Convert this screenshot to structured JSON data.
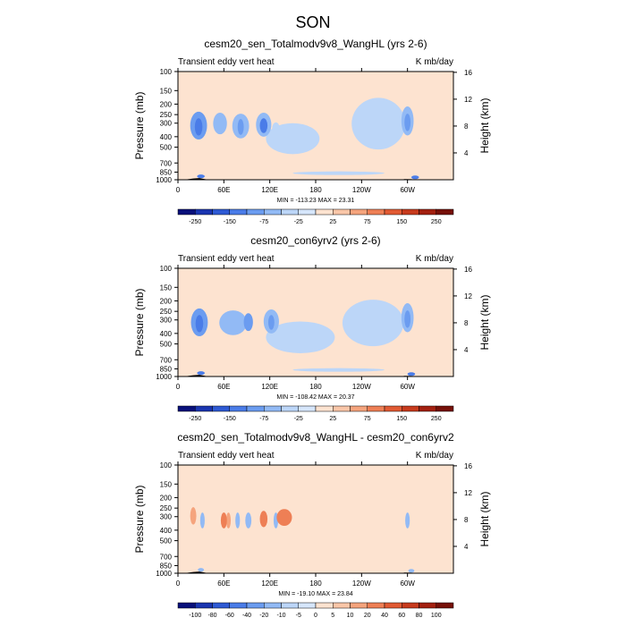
{
  "figure": {
    "main_title": "SON"
  },
  "colors": {
    "background_panel": "#fde3d0",
    "negative_scale": [
      "#08107a",
      "#1a35b0",
      "#2e5ad4",
      "#4a7ce8",
      "#6b9cf0",
      "#92baf5",
      "#bcd6f8",
      "#d6e6fb"
    ],
    "positive_scale": [
      "#fde3d0",
      "#f9c6a8",
      "#f5a47d",
      "#ee7f55",
      "#e15a33",
      "#c73b1d",
      "#a32010",
      "#761008"
    ],
    "topography": "#000000"
  },
  "chart_data": [
    {
      "type": "heatmap",
      "title": "cesm20_sen_Totalmodv9v8_WangHL (yrs 2-6)",
      "left_string": "Transient eddy vert heat",
      "right_string": "K mb/day",
      "ylabel": "Pressure (mb)",
      "y2label": "Height (km)",
      "y_ticks": [
        "100",
        "150",
        "200",
        "250",
        "300",
        "400",
        "500",
        "700",
        "850",
        "1000"
      ],
      "y_tick_values": [
        100,
        150,
        200,
        250,
        300,
        400,
        500,
        700,
        850,
        1000
      ],
      "y2_ticks": [
        "4",
        "8",
        "12",
        "16"
      ],
      "y2_tick_values": [
        4,
        8,
        12,
        16
      ],
      "x_ticks": [
        "0",
        "60E",
        "120E",
        "180",
        "120W",
        "60W"
      ],
      "x_tick_values": [
        0,
        60,
        120,
        180,
        240,
        300
      ],
      "xlim": [
        0,
        360
      ],
      "ylim": [
        1000,
        100
      ],
      "stats": "MIN = -113.23  MAX =  23.31",
      "colorbar_labels": [
        "-250",
        "-150",
        "-75",
        "-25",
        "25",
        "75",
        "150",
        "250"
      ],
      "features": [
        {
          "lon": 27,
          "plev": 330,
          "dlon": 11,
          "dp": 190,
          "value": -60
        },
        {
          "lon": 27,
          "plev": 330,
          "dlon": 5,
          "dp": 120,
          "value": -90
        },
        {
          "lon": 55,
          "plev": 310,
          "dlon": 9,
          "dp": 140,
          "value": -40
        },
        {
          "lon": 82,
          "plev": 330,
          "dlon": 11,
          "dp": 170,
          "value": -40
        },
        {
          "lon": 82,
          "plev": 330,
          "dlon": 4,
          "dp": 110,
          "value": -60
        },
        {
          "lon": 112,
          "plev": 320,
          "dlon": 10,
          "dp": 160,
          "value": -50
        },
        {
          "lon": 112,
          "plev": 320,
          "dlon": 5,
          "dp": 100,
          "value": -80
        },
        {
          "lon": 128,
          "plev": 340,
          "dlon": 5,
          "dp": 90,
          "value": -25
        },
        {
          "lon": 150,
          "plev": 440,
          "dlon": 35,
          "dp": 280,
          "value": -15
        },
        {
          "lon": 262,
          "plev": 350,
          "dlon": 35,
          "dp": 350,
          "value": -15
        },
        {
          "lon": 300,
          "plev": 300,
          "dlon": 8,
          "dp": 180,
          "value": -45
        },
        {
          "lon": 300,
          "plev": 300,
          "dlon": 4,
          "dp": 110,
          "value": -70
        },
        {
          "lon": 30,
          "plev": 930,
          "dlon": 5,
          "dp": 60,
          "value": -100
        },
        {
          "lon": 310,
          "plev": 950,
          "dlon": 5,
          "dp": 40,
          "value": -80
        },
        {
          "lon": 210,
          "plev": 870,
          "dlon": 60,
          "dp": 40,
          "value": -12
        }
      ]
    },
    {
      "type": "heatmap",
      "title": "cesm20_con6yrv2 (yrs 2-6)",
      "left_string": "Transient eddy vert heat",
      "right_string": "K mb/day",
      "ylabel": "Pressure (mb)",
      "y2label": "Height (km)",
      "y_ticks": [
        "100",
        "150",
        "200",
        "250",
        "300",
        "400",
        "500",
        "700",
        "850",
        "1000"
      ],
      "y_tick_values": [
        100,
        150,
        200,
        250,
        300,
        400,
        500,
        700,
        850,
        1000
      ],
      "y2_ticks": [
        "4",
        "8",
        "12",
        "16"
      ],
      "y2_tick_values": [
        4,
        8,
        12,
        16
      ],
      "x_ticks": [
        "0",
        "60E",
        "120E",
        "180",
        "120W",
        "60W"
      ],
      "x_tick_values": [
        0,
        60,
        120,
        180,
        240,
        300
      ],
      "xlim": [
        0,
        360
      ],
      "ylim": [
        1000,
        100
      ],
      "stats": "MIN = -108.42  MAX =  20.37",
      "colorbar_labels": [
        "-250",
        "-150",
        "-75",
        "-25",
        "25",
        "75",
        "150",
        "250"
      ],
      "features": [
        {
          "lon": 28,
          "plev": 330,
          "dlon": 11,
          "dp": 190,
          "value": -60
        },
        {
          "lon": 28,
          "plev": 330,
          "dlon": 5,
          "dp": 120,
          "value": -90
        },
        {
          "lon": 72,
          "plev": 330,
          "dlon": 18,
          "dp": 170,
          "value": -40
        },
        {
          "lon": 92,
          "plev": 320,
          "dlon": 6,
          "dp": 120,
          "value": -60
        },
        {
          "lon": 122,
          "plev": 320,
          "dlon": 10,
          "dp": 160,
          "value": -50
        },
        {
          "lon": 122,
          "plev": 320,
          "dlon": 4,
          "dp": 100,
          "value": -70
        },
        {
          "lon": 160,
          "plev": 460,
          "dlon": 45,
          "dp": 300,
          "value": -15
        },
        {
          "lon": 255,
          "plev": 360,
          "dlon": 40,
          "dp": 330,
          "value": -12
        },
        {
          "lon": 300,
          "plev": 300,
          "dlon": 8,
          "dp": 180,
          "value": -45
        },
        {
          "lon": 300,
          "plev": 300,
          "dlon": 4,
          "dp": 110,
          "value": -70
        },
        {
          "lon": 30,
          "plev": 930,
          "dlon": 5,
          "dp": 60,
          "value": -100
        },
        {
          "lon": 305,
          "plev": 950,
          "dlon": 5,
          "dp": 40,
          "value": -80
        },
        {
          "lon": 210,
          "plev": 870,
          "dlon": 60,
          "dp": 40,
          "value": -12
        }
      ]
    },
    {
      "type": "heatmap",
      "title": "cesm20_sen_Totalmodv9v8_WangHL - cesm20_con6yrv2",
      "left_string": "Transient eddy vert heat",
      "right_string": "K mb/day",
      "ylabel": "Pressure (mb)",
      "y2label": "Height (km)",
      "y_ticks": [
        "100",
        "150",
        "200",
        "250",
        "300",
        "400",
        "500",
        "700",
        "850",
        "1000"
      ],
      "y_tick_values": [
        100,
        150,
        200,
        250,
        300,
        400,
        500,
        700,
        850,
        1000
      ],
      "y2_ticks": [
        "4",
        "8",
        "12",
        "16"
      ],
      "y2_tick_values": [
        4,
        8,
        12,
        16
      ],
      "x_ticks": [
        "0",
        "60E",
        "120E",
        "180",
        "120W",
        "60W"
      ],
      "x_tick_values": [
        0,
        60,
        120,
        180,
        240,
        300
      ],
      "xlim": [
        0,
        360
      ],
      "ylim": [
        1000,
        100
      ],
      "stats": "MIN = -19.10  MAX =  23.84",
      "colorbar_labels": [
        "-100",
        "-80",
        "-60",
        "-40",
        "-20",
        "-10",
        "-5",
        "0",
        "5",
        "10",
        "20",
        "40",
        "60",
        "80",
        "100"
      ],
      "features": [
        {
          "lon": 60,
          "plev": 330,
          "dlon": 4,
          "dp": 110,
          "value": 15
        },
        {
          "lon": 66,
          "plev": 330,
          "dlon": 3,
          "dp": 110,
          "value": 9
        },
        {
          "lon": 92,
          "plev": 330,
          "dlon": 4,
          "dp": 110,
          "value": -8
        },
        {
          "lon": 112,
          "plev": 320,
          "dlon": 5,
          "dp": 110,
          "value": 14
        },
        {
          "lon": 139,
          "plev": 310,
          "dlon": 10,
          "dp": 110,
          "value": 16
        },
        {
          "lon": 20,
          "plev": 300,
          "dlon": 4,
          "dp": 110,
          "value": 7
        },
        {
          "lon": 32,
          "plev": 330,
          "dlon": 3,
          "dp": 110,
          "value": -6
        },
        {
          "lon": 78,
          "plev": 330,
          "dlon": 3,
          "dp": 110,
          "value": -6
        },
        {
          "lon": 128,
          "plev": 330,
          "dlon": 3,
          "dp": 110,
          "value": -6
        },
        {
          "lon": 176,
          "plev": 400,
          "dlon": 10,
          "dp": 250,
          "value": -2
        },
        {
          "lon": 300,
          "plev": 330,
          "dlon": 3,
          "dp": 110,
          "value": -6
        },
        {
          "lon": 30,
          "plev": 930,
          "dlon": 4,
          "dp": 50,
          "value": -9
        },
        {
          "lon": 305,
          "plev": 950,
          "dlon": 4,
          "dp": 40,
          "value": -7
        }
      ]
    }
  ]
}
